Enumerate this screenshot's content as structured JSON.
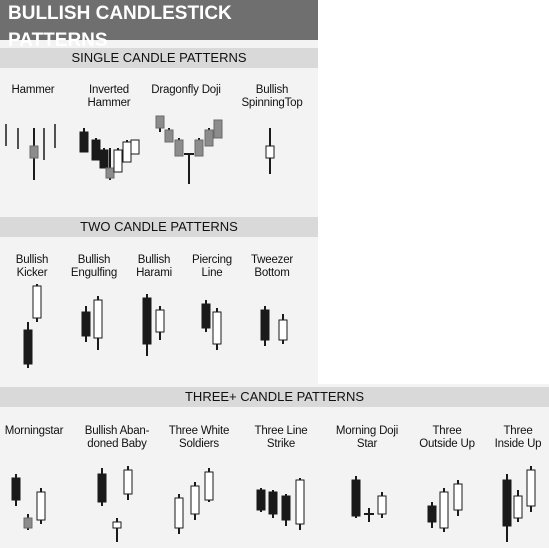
{
  "title": "BULLISH CANDLESTICK PATTERNS",
  "sections": [
    {
      "id": "single",
      "heading": "SINGLE CANDLE PATTERNS",
      "patterns": [
        "Hammer",
        "Inverted\nHammer",
        "Dragonfly Doji",
        "Bullish\nSpinningTop"
      ]
    },
    {
      "id": "two",
      "heading": "TWO CANDLE PATTERNS",
      "patterns": [
        "Bullish\nKicker",
        "Bullish\nEngulfing",
        "Bullish\nHarami",
        "Piercing\nLine",
        "Tweezer\nBottom"
      ]
    },
    {
      "id": "three",
      "heading": "THREE+ CANDLE PATTERNS",
      "patterns": [
        "Morningstar",
        "Bullish Aban-\ndoned Baby",
        "Three White\nSoldiers",
        "Three Line\nStrike",
        "Morning Doji\nStar",
        "Three\nOutside Up",
        "Three\nInside Up"
      ]
    }
  ],
  "colors": {
    "bearish": "#1a1a1a",
    "bullish": "#ffffff",
    "neutral": "#8c8c8c",
    "title_bg": "#6f6f6f",
    "header_bg": "#d9d9d9",
    "panel_bg": "#f3f3f3"
  }
}
